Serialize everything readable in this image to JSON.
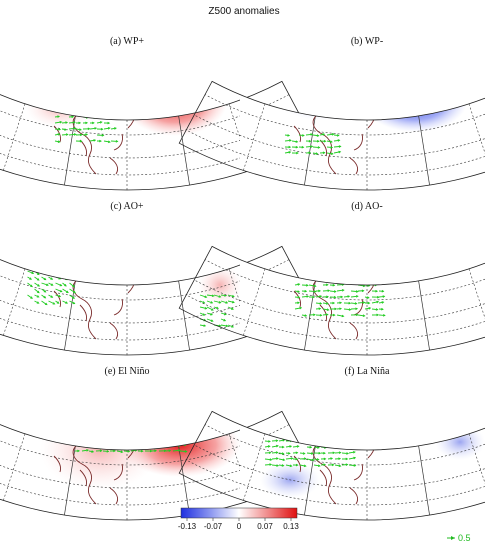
{
  "title": "Z500 anomalies",
  "panels": [
    {
      "label": "(a) WP+"
    },
    {
      "label": "(b) WP-"
    },
    {
      "label": "(c) AO+"
    },
    {
      "label": "(d) AO-"
    },
    {
      "label": "(e) El Niño"
    },
    {
      "label": "(f) La Niña"
    }
  ],
  "colorbar": {
    "ticks": [
      "-0.13",
      "-0.07",
      "0",
      "0.07",
      "0.13"
    ],
    "colors": {
      "negative": "#2a3bd8",
      "zero": "#ffffff",
      "positive": "#e31a1c"
    }
  },
  "reference_vector": {
    "label": "0.5",
    "color": "#22bb22"
  },
  "colors": {
    "coastline": "#7a2a2a",
    "grid": "#333333",
    "vectors": "#22cc22"
  }
}
